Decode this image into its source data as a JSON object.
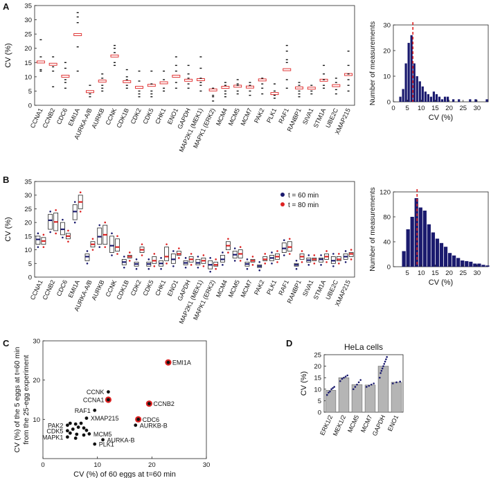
{
  "panels": {
    "A": "A",
    "B": "B",
    "C": "C",
    "D": "D"
  },
  "genes": [
    "CCNA1",
    "CCNB2",
    "CDC6",
    "EMI1A",
    "AURKA-A/B",
    "AURKB",
    "CCNK",
    "CDK1B",
    "CDK2",
    "CDK5",
    "CHK1",
    "ENO1",
    "GAPDH",
    "MAP2K1 (MEK1)",
    "MAPK1 (ERK2)",
    "MCM4",
    "MCM5",
    "MCM7",
    "PAK2",
    "PLK1",
    "RAF1",
    "RANBP1",
    "SIVA1",
    "STM1A",
    "UBE2C",
    "XMAP215"
  ],
  "colors": {
    "navy": "#1a1a6e",
    "red": "#dd2222",
    "gray": "#b5b5b5"
  },
  "chart_data": [
    {
      "panel": "A",
      "type": "box",
      "ylabel": "CV (%)",
      "ylim": [
        0,
        35
      ],
      "yticks": [
        0,
        5,
        10,
        15,
        20,
        25,
        30,
        35
      ],
      "medians": [
        15.2,
        14.4,
        10.2,
        24.8,
        4.8,
        8.5,
        17.3,
        8.3,
        6.3,
        7.0,
        7.9,
        10.2,
        8.8,
        9.0,
        5.4,
        6.3,
        6.7,
        6.4,
        8.9,
        4.1,
        12.5,
        6.1,
        6.0,
        8.8,
        6.9,
        10.8
      ],
      "points": [
        [
          12,
          12.5,
          17,
          23
        ],
        [
          6.5,
          12,
          13.5,
          17
        ],
        [
          6,
          8,
          9,
          13,
          15
        ],
        [
          12,
          20.5,
          29,
          31,
          32.5
        ],
        [
          3,
          4,
          7
        ],
        [
          5,
          6,
          7,
          9.5,
          11
        ],
        [
          14,
          15,
          18.5,
          20,
          21
        ],
        [
          6,
          7,
          9,
          10,
          12.5
        ],
        [
          3,
          4,
          5,
          8.5,
          12
        ],
        [
          3,
          4,
          5,
          7.5,
          12
        ],
        [
          5,
          6,
          9,
          12
        ],
        [
          6,
          8,
          12,
          14,
          17
        ],
        [
          6,
          7.5,
          9.5,
          11,
          14
        ],
        [
          5,
          7,
          8,
          9.5,
          13,
          17
        ],
        [
          1.5,
          3,
          3.5,
          6
        ],
        [
          3,
          4,
          5,
          7,
          8
        ],
        [
          4,
          5,
          7,
          7.5,
          9
        ],
        [
          3.5,
          5,
          7,
          8
        ],
        [
          4,
          6,
          7.5,
          9.5
        ],
        [
          2.5,
          3.5,
          5,
          7.5
        ],
        [
          6,
          9,
          15,
          16,
          19,
          21
        ],
        [
          3,
          4,
          5,
          7,
          8
        ],
        [
          4,
          5,
          7
        ],
        [
          6,
          7,
          9,
          11,
          14
        ],
        [
          4,
          5.5,
          8,
          9.5
        ],
        [
          5,
          7,
          9,
          11,
          14,
          19
        ]
      ]
    },
    {
      "panel": "A-hist",
      "type": "bar",
      "xlabel": "CV (%)",
      "ylabel": "Number of measurements",
      "xlim": [
        0,
        34
      ],
      "ylim": [
        0,
        30
      ],
      "xticks": [
        0,
        5,
        10,
        15,
        20,
        25,
        30
      ],
      "yticks": [
        0,
        10,
        20,
        30
      ],
      "bin_width": 1,
      "counts": [
        0,
        0,
        2,
        5,
        15,
        23,
        26,
        15,
        10,
        8,
        6,
        4,
        3,
        2,
        4,
        3,
        2,
        1,
        2,
        2,
        0,
        1,
        0,
        1,
        0,
        0,
        0,
        1,
        0,
        1,
        0,
        0,
        0,
        1
      ],
      "median_line": 7
    },
    {
      "panel": "B",
      "type": "box",
      "ylabel": "CV (%)",
      "ylim": [
        0,
        35
      ],
      "yticks": [
        0,
        5,
        10,
        15,
        20,
        25,
        30,
        35
      ],
      "legend": [
        "t = 60 min",
        "t = 80 min"
      ],
      "legend_position": "top-right",
      "series60": [
        [
          12,
          13.8,
          15
        ],
        [
          17.5,
          20.8,
          23
        ],
        [
          15.5,
          17.5,
          20
        ],
        [
          21,
          24,
          26.5
        ],
        [
          6,
          7.5,
          8.5
        ],
        [
          12,
          14.8,
          18
        ],
        [
          9,
          11.5,
          15
        ],
        [
          4.5,
          5.5,
          6.5
        ],
        [
          4,
          4.8,
          5.5
        ],
        [
          4,
          4.8,
          5.5
        ],
        [
          4,
          5,
          6
        ],
        [
          5,
          6.5,
          8.5
        ],
        [
          4.5,
          5.2,
          6
        ],
        [
          4.5,
          5.2,
          6.5
        ],
        [
          3,
          4.5,
          6
        ],
        [
          5.5,
          6.5,
          8
        ],
        [
          7,
          8.2,
          9.5
        ],
        [
          4,
          4.8,
          5.5
        ],
        [
          3.5,
          4,
          4.5
        ],
        [
          6,
          7,
          8
        ],
        [
          9,
          10.5,
          12.5
        ],
        [
          4,
          4.5,
          5
        ],
        [
          5.5,
          6.2,
          7
        ],
        [
          5.5,
          6.5,
          7
        ],
        [
          5,
          6,
          7.5
        ],
        [
          6.5,
          7.5,
          8.5
        ]
      ],
      "series80": [
        [
          12,
          13.2,
          14.5
        ],
        [
          17,
          20.2,
          23.5
        ],
        [
          14,
          15,
          16
        ],
        [
          25,
          27.5,
          30
        ],
        [
          11,
          12,
          13
        ],
        [
          12,
          15.5,
          19
        ],
        [
          9.5,
          11,
          14
        ],
        [
          7,
          7.5,
          8
        ],
        [
          9,
          10,
          11
        ],
        [
          5,
          6,
          7.5
        ],
        [
          6,
          7.5,
          11
        ],
        [
          8,
          8.5,
          9.5
        ],
        [
          5.5,
          6.5,
          7.5
        ],
        [
          5,
          6,
          7
        ],
        [
          4,
          4.5,
          5.5
        ],
        [
          10,
          11.5,
          13
        ],
        [
          7,
          8.5,
          10
        ],
        [
          5.5,
          6,
          6.5
        ],
        [
          6,
          6.5,
          7.5
        ],
        [
          6.5,
          7.5,
          8.5
        ],
        [
          9.5,
          11,
          13
        ],
        [
          6.5,
          7.5,
          8.5
        ],
        [
          6,
          6.5,
          7
        ],
        [
          6.5,
          7.5,
          8.5
        ],
        [
          6,
          6.5,
          7.5
        ],
        [
          7.5,
          8.5,
          9
        ]
      ]
    },
    {
      "panel": "B-hist",
      "type": "bar",
      "xlabel": "CV (%)",
      "ylabel": "Number of measurements",
      "xlim": [
        0,
        34
      ],
      "ylim": [
        0,
        120
      ],
      "xticks": [
        5,
        10,
        15,
        20,
        25,
        30
      ],
      "yticks": [
        0,
        40,
        80,
        120
      ],
      "bin_width": 1.5,
      "counts": [
        0,
        0,
        25,
        60,
        80,
        110,
        95,
        90,
        68,
        55,
        45,
        38,
        32,
        22,
        18,
        14,
        10,
        9,
        8,
        5,
        5,
        3,
        2
      ],
      "median_line": 8.5
    },
    {
      "panel": "C",
      "type": "scatter",
      "xlabel": "CV (%) of 60 eggs at t=60 min",
      "ylabel": "CV (%) of the 5 eggs at t=60 min from the 25-egg experiment",
      "xlim": [
        0,
        30
      ],
      "ylim": [
        0,
        30
      ],
      "xticks": [
        0,
        10,
        20,
        30
      ],
      "yticks": [
        10,
        20,
        30
      ],
      "points": [
        {
          "x": 23,
          "y": 24.5,
          "label": "EMI1A",
          "highlight": true
        },
        {
          "x": 12,
          "y": 17,
          "label": "CCNK",
          "highlight": false
        },
        {
          "x": 12,
          "y": 15,
          "label": "CCNA1",
          "highlight": true
        },
        {
          "x": 19.5,
          "y": 14,
          "label": "CCNB2",
          "highlight": true
        },
        {
          "x": 9.5,
          "y": 12.3,
          "label": "RAF1",
          "highlight": false
        },
        {
          "x": 17.5,
          "y": 10,
          "label": "CDC6",
          "highlight": true
        },
        {
          "x": 8,
          "y": 10.3,
          "label": "XMAP215",
          "highlight": false
        },
        {
          "x": 17,
          "y": 8.5,
          "label": "AURKB-B",
          "highlight": false
        },
        {
          "x": 4.5,
          "y": 8.5,
          "label": "PAK2",
          "highlight": false
        },
        {
          "x": 4.5,
          "y": 7.1,
          "label": "CDK5",
          "highlight": false
        },
        {
          "x": 8.5,
          "y": 6.3,
          "label": "MCM5",
          "highlight": false
        },
        {
          "x": 4.5,
          "y": 5.5,
          "label": "MAPK1",
          "highlight": false
        },
        {
          "x": 11,
          "y": 4.8,
          "label": "AURKA-B",
          "highlight": false
        },
        {
          "x": 9.5,
          "y": 3.7,
          "label": "PLK1",
          "highlight": false
        },
        {
          "x": 5,
          "y": 9,
          "label": "",
          "highlight": false
        },
        {
          "x": 6,
          "y": 8.8,
          "label": "",
          "highlight": false
        },
        {
          "x": 7,
          "y": 9,
          "label": "",
          "highlight": false
        },
        {
          "x": 5.5,
          "y": 7.5,
          "label": "",
          "highlight": false
        },
        {
          "x": 6.5,
          "y": 8,
          "label": "",
          "highlight": false
        },
        {
          "x": 7.5,
          "y": 7.8,
          "label": "",
          "highlight": false
        },
        {
          "x": 5,
          "y": 6.5,
          "label": "",
          "highlight": false
        },
        {
          "x": 6.2,
          "y": 6.2,
          "label": "",
          "highlight": false
        },
        {
          "x": 7.5,
          "y": 6,
          "label": "",
          "highlight": false
        },
        {
          "x": 6,
          "y": 5.2,
          "label": "",
          "highlight": false
        },
        {
          "x": 8,
          "y": 7.2,
          "label": "",
          "highlight": false
        }
      ]
    },
    {
      "panel": "D",
      "type": "bar",
      "title": "HeLa cells",
      "ylabel": "CV (%)",
      "ylim": [
        0,
        25
      ],
      "yticks": [
        0,
        5,
        10,
        15,
        20,
        25
      ],
      "categories": [
        "ERK1/2",
        "MEK1/2",
        "MCM5",
        "MCM7",
        "GAPDH",
        "ENO1"
      ],
      "values": [
        9.5,
        15,
        12,
        11.8,
        20,
        13
      ],
      "points": [
        [
          7.5,
          8.5,
          9,
          10,
          10.5,
          11
        ],
        [
          13.5,
          14.5,
          15,
          15.5,
          16
        ],
        [
          10,
          11,
          12,
          13,
          14
        ],
        [
          11,
          11.5,
          12,
          12.5
        ],
        [
          15,
          17,
          18,
          19,
          20,
          21,
          22,
          23,
          24
        ],
        [
          12.5,
          13,
          13.3
        ]
      ]
    }
  ]
}
